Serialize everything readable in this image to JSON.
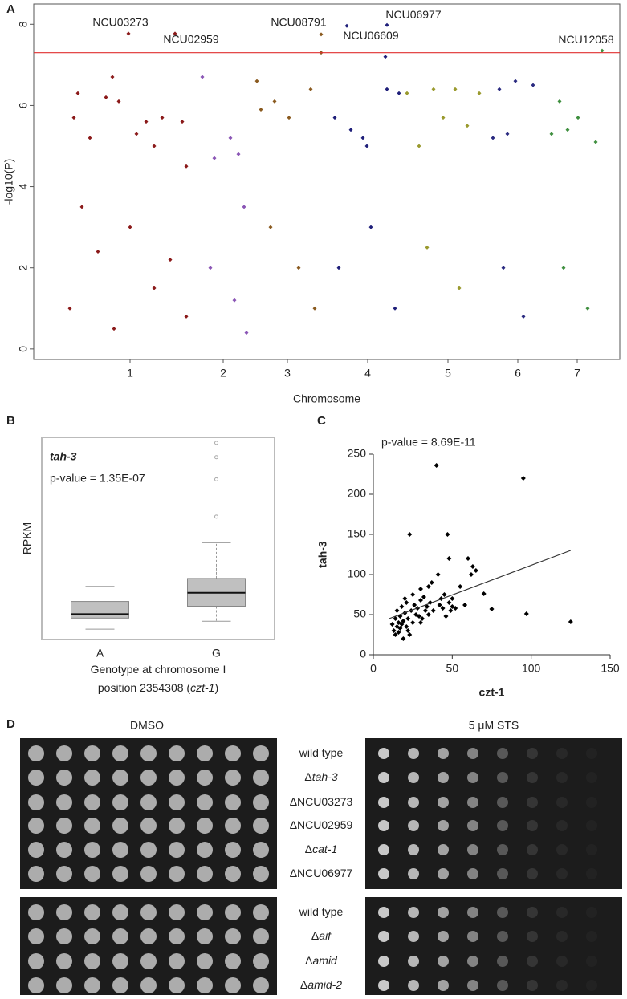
{
  "chart_data": [
    {
      "type": "manhattan",
      "panel": "A",
      "xlabel": "Chromosome",
      "ylabel": "-log10(P)",
      "xlim": [
        0,
        730
      ],
      "ylim": [
        -0.26,
        8.5
      ],
      "xticks": [
        {
          "value": 120,
          "label": "1"
        },
        {
          "value": 236,
          "label": "2"
        },
        {
          "value": 316,
          "label": "3"
        },
        {
          "value": 416,
          "label": "4"
        },
        {
          "value": 516,
          "label": "5"
        },
        {
          "value": 603,
          "label": "6"
        },
        {
          "value": 677,
          "label": "7"
        }
      ],
      "yticks": [
        0,
        2,
        4,
        6,
        8
      ],
      "threshold": 7.3,
      "threshold_color": "#e03030",
      "series": [
        {
          "color": "#8b1a1a",
          "x": [
            50,
            55,
            70,
            90,
            98,
            118,
            106,
            128,
            140,
            150,
            160,
            176,
            185,
            190,
            60,
            80,
            120,
            170,
            45,
            100,
            150,
            190
          ],
          "values": [
            5.7,
            6.3,
            5.2,
            6.2,
            6.7,
            7.77,
            6.1,
            5.3,
            5.6,
            5.0,
            5.7,
            7.77,
            5.6,
            4.5,
            3.5,
            2.4,
            3.0,
            2.2,
            1.0,
            0.5,
            1.5,
            0.8
          ]
        },
        {
          "color": "#8a55b5",
          "x": [
            210,
            225,
            245,
            255,
            262,
            220,
            250,
            265
          ],
          "values": [
            6.7,
            4.7,
            5.2,
            4.8,
            3.5,
            2.0,
            1.2,
            0.4
          ]
        },
        {
          "color": "#8a5a1f",
          "x": [
            278,
            283,
            300,
            318,
            345,
            358,
            358,
            295,
            330,
            350
          ],
          "values": [
            6.6,
            5.9,
            6.1,
            5.7,
            6.4,
            7.75,
            7.3,
            3.0,
            2.0,
            1.0
          ]
        },
        {
          "color": "#1f1f7a",
          "x": [
            375,
            395,
            410,
            415,
            390,
            440,
            440,
            438,
            455,
            420,
            380,
            450
          ],
          "values": [
            5.7,
            5.4,
            5.2,
            5.0,
            7.96,
            6.4,
            7.98,
            7.2,
            6.3,
            3.0,
            2.0,
            1.0
          ]
        },
        {
          "color": "#9a9a2e",
          "x": [
            465,
            480,
            498,
            510,
            525,
            540,
            555,
            490,
            530
          ],
          "values": [
            6.3,
            5.0,
            6.4,
            5.7,
            6.4,
            5.5,
            6.3,
            2.5,
            1.5
          ]
        },
        {
          "color": "#2a2a80",
          "x": [
            572,
            580,
            590,
            600,
            622,
            585,
            610
          ],
          "values": [
            5.2,
            6.4,
            5.3,
            6.6,
            6.5,
            2.0,
            0.8
          ]
        },
        {
          "color": "#3f8f3f",
          "x": [
            645,
            655,
            665,
            678,
            700,
            708,
            660,
            690
          ],
          "values": [
            5.3,
            6.1,
            5.4,
            5.7,
            5.1,
            7.35,
            2.0,
            1.0
          ]
        }
      ],
      "annotations": [
        {
          "text": "NCU03273",
          "x": 118,
          "y": 7.77
        },
        {
          "text": "NCU02959",
          "x": 176,
          "y": 7.77
        },
        {
          "text": "NCU08791",
          "x": 358,
          "y": 7.75
        },
        {
          "text": "NCU06609",
          "x": 390,
          "y": 7.96
        },
        {
          "text": "NCU06977",
          "x": 440,
          "y": 7.98
        },
        {
          "text": "NCU12058",
          "x": 708,
          "y": 7.35
        }
      ]
    },
    {
      "type": "box",
      "panel": "B",
      "title": "tah-3",
      "subtitle": "p-value = 1.35E-07",
      "ylabel": "RPKM",
      "xlabel_lines": [
        [
          {
            "text": "Genotype at chromosome I"
          }
        ],
        [
          {
            "text": "position 2354308 ("
          },
          {
            "text": "czt-1",
            "italic": true
          },
          {
            "text": ")"
          }
        ]
      ],
      "categories": [
        "A",
        "G"
      ],
      "ylim": [
        0,
        255
      ],
      "color": "#c0c0c0",
      "boxes": [
        {
          "min": 13,
          "q1": 27,
          "median": 32,
          "q3": 48,
          "max": 67,
          "outliers": []
        },
        {
          "min": 23,
          "q1": 42,
          "median": 59,
          "q3": 77,
          "max": 122,
          "outliers": [
            155,
            202,
            230,
            248
          ]
        }
      ]
    },
    {
      "type": "scatter",
      "panel": "C",
      "title": "p-value = 8.69E-11",
      "xlabel": "czt-1",
      "ylabel": "tah-3",
      "xlim": [
        0,
        150
      ],
      "ylim": [
        0,
        250
      ],
      "xticks": [
        0,
        50,
        100,
        150
      ],
      "yticks": [
        0,
        50,
        100,
        150,
        200,
        250
      ],
      "color": "#000000",
      "x": [
        12,
        13,
        14,
        14,
        15,
        15,
        16,
        16,
        17,
        17,
        18,
        18,
        19,
        19,
        20,
        20,
        21,
        21,
        22,
        22,
        23,
        24,
        25,
        25,
        26,
        27,
        28,
        29,
        30,
        30,
        31,
        32,
        33,
        34,
        35,
        35,
        36,
        37,
        38,
        40,
        41,
        42,
        43,
        44,
        45,
        46,
        47,
        48,
        49,
        50,
        52,
        55,
        58,
        60,
        62,
        63,
        65,
        70,
        75,
        95,
        97,
        125,
        48,
        23,
        30,
        50
      ],
      "values": [
        38,
        30,
        45,
        25,
        35,
        55,
        40,
        28,
        48,
        33,
        60,
        38,
        42,
        20,
        52,
        70,
        35,
        65,
        45,
        30,
        150,
        55,
        75,
        40,
        62,
        50,
        58,
        48,
        68,
        82,
        45,
        72,
        55,
        60,
        85,
        50,
        65,
        90,
        55,
        236,
        100,
        62,
        70,
        58,
        75,
        48,
        150,
        65,
        55,
        60,
        58,
        85,
        62,
        120,
        100,
        110,
        105,
        76,
        57,
        220,
        51,
        41,
        120,
        25,
        40,
        70
      ],
      "trendline": {
        "x": [
          10,
          125
        ],
        "values": [
          45,
          130
        ]
      }
    }
  ],
  "panel_d": {
    "label": "D",
    "columns": [
      "DMSO",
      "5 μM STS"
    ],
    "groups": [
      [
        {
          "name": "wild type"
        },
        {
          "prefix": "Δ",
          "name": "tah-3",
          "italic": true
        },
        {
          "prefix": "Δ",
          "name": "NCU03273"
        },
        {
          "prefix": "Δ",
          "name": "NCU02959"
        },
        {
          "prefix": "Δ",
          "name": "cat-1",
          "italic": true
        },
        {
          "prefix": "Δ",
          "name": "NCU06977"
        }
      ],
      [
        {
          "name": "wild type"
        },
        {
          "prefix": "Δ",
          "name": "aif",
          "italic": true
        },
        {
          "prefix": "Δ",
          "name": "amid",
          "italic": true
        },
        {
          "prefix": "Δ",
          "name": "amid-2",
          "italic": true
        }
      ]
    ]
  }
}
